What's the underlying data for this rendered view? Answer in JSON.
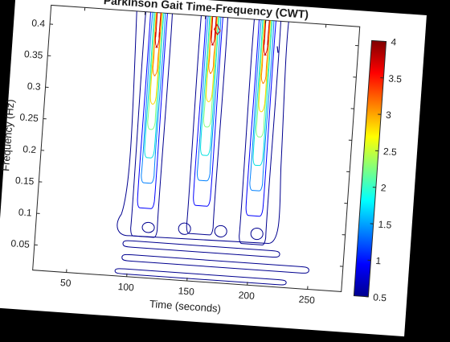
{
  "chart_data": {
    "type": "contour",
    "title": "Parkinson Gait Time-Frequency (CWT)",
    "xlabel": "Time (seconds)",
    "ylabel": "Frequency (Hz)",
    "xlim": [
      22,
      278
    ],
    "ylim": [
      0.01,
      0.43
    ],
    "xticks": [
      50,
      100,
      150,
      200,
      250
    ],
    "yticks": [
      0.05,
      0.1,
      0.15,
      0.2,
      0.25,
      0.3,
      0.35,
      0.4
    ],
    "colorbar": {
      "lim": [
        0.5,
        4
      ],
      "ticks": [
        0.5,
        1,
        1.5,
        2,
        2.5,
        3,
        3.5,
        4
      ],
      "colormap": "jet"
    },
    "levels": [
      0.5,
      1,
      1.5,
      2,
      2.5,
      3,
      3.5,
      4
    ],
    "level_colors": [
      "#00008f",
      "#0000ff",
      "#0080ff",
      "#00e0e0",
      "#7fff7f",
      "#ffd700",
      "#ff7f00",
      "#d00000"
    ],
    "ridges": [
      {
        "time": 111,
        "left": 102,
        "right": 121
      },
      {
        "time": 158,
        "left": 148,
        "right": 167
      },
      {
        "time": 201,
        "left": 192,
        "right": 211
      }
    ],
    "blobs": [
      {
        "time": 115,
        "freq": 0.09,
        "rx": 5,
        "ry": 0.008
      },
      {
        "time": 145,
        "freq": 0.092,
        "rx": 5,
        "ry": 0.009
      },
      {
        "time": 175,
        "freq": 0.092,
        "rx": 5,
        "ry": 0.009
      },
      {
        "time": 205,
        "freq": 0.092,
        "rx": 5,
        "ry": 0.009
      }
    ],
    "bands": [
      {
        "t0": 95,
        "t1": 225,
        "freq": 0.062,
        "thick": 0.01
      },
      {
        "t0": 95,
        "t1": 250,
        "freq": 0.04,
        "thick": 0.01
      },
      {
        "t0": 90,
        "t1": 232,
        "freq": 0.018,
        "thick": 0.008
      }
    ]
  }
}
